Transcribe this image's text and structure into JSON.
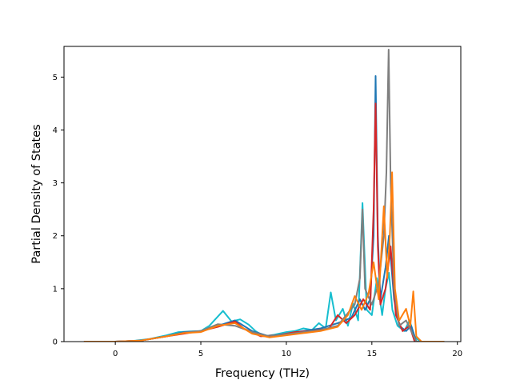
{
  "chart_data": {
    "type": "line",
    "title": "",
    "xlabel": "Frequency (THz)",
    "ylabel": "Partial Density of States",
    "xlim": [
      -3.0,
      20.2
    ],
    "ylim": [
      0,
      5.58
    ],
    "xticks": [
      {
        "value": 0,
        "label": "0"
      },
      {
        "value": 5,
        "label": "5"
      },
      {
        "value": 10,
        "label": "10"
      },
      {
        "value": 15,
        "label": "15"
      },
      {
        "value": 20,
        "label": "20"
      }
    ],
    "yticks": [
      {
        "value": 0,
        "label": "0"
      },
      {
        "value": 1,
        "label": "1"
      },
      {
        "value": 2,
        "label": "2"
      },
      {
        "value": 3,
        "label": "3"
      },
      {
        "value": 4,
        "label": "4"
      },
      {
        "value": 5,
        "label": "5"
      }
    ],
    "grid": false,
    "legend": "none",
    "series": [
      {
        "color": "#17becf",
        "points": [
          [
            -1.8,
            0
          ],
          [
            0,
            0
          ],
          [
            1,
            0.01
          ],
          [
            2,
            0.05
          ],
          [
            3,
            0.12
          ],
          [
            3.7,
            0.18
          ],
          [
            4.3,
            0.19
          ],
          [
            5,
            0.2
          ],
          [
            5.5,
            0.3
          ],
          [
            6.3,
            0.58
          ],
          [
            6.8,
            0.38
          ],
          [
            7.3,
            0.42
          ],
          [
            7.8,
            0.32
          ],
          [
            8.2,
            0.2
          ],
          [
            8.7,
            0.1
          ],
          [
            9.3,
            0.13
          ],
          [
            10,
            0.18
          ],
          [
            10.5,
            0.2
          ],
          [
            11,
            0.25
          ],
          [
            11.5,
            0.22
          ],
          [
            11.9,
            0.35
          ],
          [
            12.3,
            0.25
          ],
          [
            12.6,
            0.93
          ],
          [
            12.9,
            0.4
          ],
          [
            13.3,
            0.62
          ],
          [
            13.6,
            0.3
          ],
          [
            13.9,
            0.72
          ],
          [
            14.2,
            0.4
          ],
          [
            14.45,
            2.62
          ],
          [
            14.7,
            0.6
          ],
          [
            15,
            0.5
          ],
          [
            15.3,
            1.2
          ],
          [
            15.6,
            0.5
          ],
          [
            15.8,
            1
          ],
          [
            16,
            1.3
          ],
          [
            16.2,
            0.6
          ],
          [
            16.5,
            0.3
          ],
          [
            16.9,
            0.2
          ],
          [
            17.2,
            0.4
          ],
          [
            17.5,
            0.1
          ],
          [
            17.8,
            0
          ],
          [
            19.2,
            0
          ]
        ]
      },
      {
        "color": "#1f77b4",
        "points": [
          [
            -1.8,
            0
          ],
          [
            0,
            0
          ],
          [
            1.5,
            0.02
          ],
          [
            3,
            0.1
          ],
          [
            4,
            0.18
          ],
          [
            5,
            0.2
          ],
          [
            6,
            0.3
          ],
          [
            7,
            0.4
          ],
          [
            8,
            0.2
          ],
          [
            9,
            0.1
          ],
          [
            10,
            0.15
          ],
          [
            11,
            0.2
          ],
          [
            12,
            0.25
          ],
          [
            13,
            0.35
          ],
          [
            13.8,
            0.45
          ],
          [
            14.3,
            0.8
          ],
          [
            14.6,
            0.6
          ],
          [
            14.9,
            0.8
          ],
          [
            15.1,
            2.0
          ],
          [
            15.22,
            5.02
          ],
          [
            15.35,
            2.0
          ],
          [
            15.5,
            0.8
          ],
          [
            15.8,
            1.4
          ],
          [
            16,
            2.0
          ],
          [
            16.3,
            0.8
          ],
          [
            16.6,
            0.3
          ],
          [
            17,
            0.2
          ],
          [
            17.3,
            0.3
          ],
          [
            17.6,
            0
          ],
          [
            19.2,
            0
          ]
        ]
      },
      {
        "color": "#d62728",
        "points": [
          [
            -1.8,
            0
          ],
          [
            0,
            0
          ],
          [
            1.5,
            0.02
          ],
          [
            3,
            0.1
          ],
          [
            4,
            0.15
          ],
          [
            5,
            0.2
          ],
          [
            6,
            0.28
          ],
          [
            7,
            0.38
          ],
          [
            7.5,
            0.25
          ],
          [
            8.5,
            0.1
          ],
          [
            9.5,
            0.12
          ],
          [
            10.5,
            0.18
          ],
          [
            11.5,
            0.2
          ],
          [
            12.5,
            0.25
          ],
          [
            13,
            0.5
          ],
          [
            13.5,
            0.35
          ],
          [
            14,
            0.5
          ],
          [
            14.5,
            0.8
          ],
          [
            14.9,
            0.6
          ],
          [
            15.1,
            2.5
          ],
          [
            15.22,
            4.5
          ],
          [
            15.35,
            1.8
          ],
          [
            15.5,
            0.7
          ],
          [
            15.8,
            1.0
          ],
          [
            16.1,
            1.8
          ],
          [
            16.4,
            0.5
          ],
          [
            16.8,
            0.2
          ],
          [
            17.2,
            0.3
          ],
          [
            17.5,
            0
          ],
          [
            19.2,
            0
          ]
        ]
      },
      {
        "color": "#7f7f7f",
        "points": [
          [
            -1.8,
            0
          ],
          [
            0,
            0
          ],
          [
            1.5,
            0.02
          ],
          [
            3,
            0.1
          ],
          [
            4,
            0.17
          ],
          [
            5,
            0.2
          ],
          [
            6,
            0.33
          ],
          [
            7,
            0.3
          ],
          [
            8,
            0.18
          ],
          [
            9,
            0.1
          ],
          [
            10,
            0.14
          ],
          [
            11,
            0.18
          ],
          [
            12,
            0.22
          ],
          [
            13,
            0.3
          ],
          [
            13.5,
            0.5
          ],
          [
            14,
            0.7
          ],
          [
            14.3,
            1.2
          ],
          [
            14.45,
            2.5
          ],
          [
            14.6,
            1.0
          ],
          [
            15,
            0.7
          ],
          [
            15.4,
            1.1
          ],
          [
            15.7,
            2.0
          ],
          [
            15.85,
            3.2
          ],
          [
            15.98,
            5.52
          ],
          [
            16.1,
            3.0
          ],
          [
            16.3,
            1.0
          ],
          [
            16.6,
            0.3
          ],
          [
            17,
            0.4
          ],
          [
            17.3,
            0.2
          ],
          [
            17.6,
            0
          ],
          [
            19.2,
            0
          ]
        ]
      },
      {
        "color": "#ff7f0e",
        "points": [
          [
            -1.8,
            0
          ],
          [
            0,
            0
          ],
          [
            1.5,
            0.02
          ],
          [
            3,
            0.1
          ],
          [
            4,
            0.16
          ],
          [
            5,
            0.18
          ],
          [
            6,
            0.3
          ],
          [
            7,
            0.35
          ],
          [
            8,
            0.15
          ],
          [
            9,
            0.08
          ],
          [
            10,
            0.12
          ],
          [
            11,
            0.16
          ],
          [
            12,
            0.2
          ],
          [
            13,
            0.28
          ],
          [
            13.6,
            0.5
          ],
          [
            14,
            0.86
          ],
          [
            14.4,
            0.6
          ],
          [
            14.8,
            0.9
          ],
          [
            15.1,
            1.5
          ],
          [
            15.4,
            0.8
          ],
          [
            15.7,
            2.56
          ],
          [
            15.9,
            1.2
          ],
          [
            16.05,
            2.0
          ],
          [
            16.18,
            3.2
          ],
          [
            16.35,
            1.0
          ],
          [
            16.6,
            0.4
          ],
          [
            17,
            0.62
          ],
          [
            17.25,
            0.3
          ],
          [
            17.42,
            0.95
          ],
          [
            17.6,
            0.1
          ],
          [
            17.9,
            0
          ],
          [
            19.2,
            0
          ]
        ]
      }
    ]
  }
}
